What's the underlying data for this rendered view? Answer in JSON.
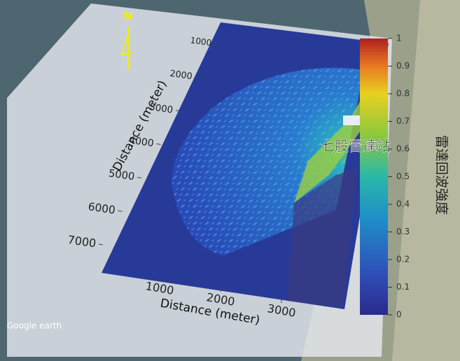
{
  "north": "N",
  "station_label": "七股雷達站",
  "watermark": "Google earth",
  "colorbar": {
    "label": "雷達回波強度",
    "ticks": [
      0,
      0.1,
      0.2,
      0.3,
      0.4,
      0.5,
      0.6,
      0.7,
      0.8,
      0.9,
      1
    ]
  },
  "x_axis": {
    "label": "Distance (meter)",
    "ticks": [
      1000,
      2000,
      3000
    ]
  },
  "y_axis": {
    "label": "Distance (meter)",
    "ticks": [
      1000,
      2000,
      3000,
      4000,
      5000,
      6000,
      7000
    ]
  }
}
